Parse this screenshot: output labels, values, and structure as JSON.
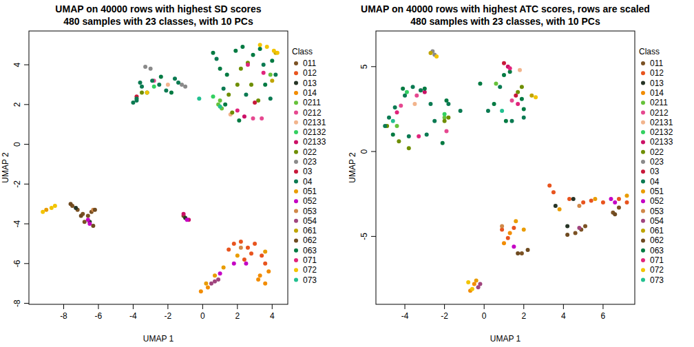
{
  "chart_data": [
    {
      "type": "scatter",
      "title": "UMAP on 40000 rows with highest SD scores",
      "subtitle": "480 samples with 23 classes, with 10 PCs",
      "x_label": "UMAP 1",
      "y_label": "UMAP 2",
      "legend_title": "Class",
      "xlim": [
        -10,
        4.9
      ],
      "ylim": [
        -8.05,
        5.7
      ],
      "xticks": [
        -8,
        -6,
        -4,
        -2,
        0,
        2,
        4
      ],
      "yticks": [
        -8,
        -6,
        -4,
        -2,
        0,
        2,
        4
      ],
      "marker": "circle",
      "series": [
        {
          "name": "011",
          "color": "#7B5224",
          "x": [
            -7.5,
            -7.2,
            -6.9,
            -6.6,
            -6.4,
            -6.8,
            -1.1
          ],
          "values": [
            -3.1,
            -3.3,
            -3.5,
            -3.6,
            -3.4,
            -3.9,
            -3.6
          ]
        },
        {
          "name": "012",
          "color": "#E8541E",
          "x": [
            1.8,
            2.2,
            2.6,
            3.0,
            3.4,
            2.8,
            3.6,
            2.4,
            1.5
          ],
          "values": [
            -5.0,
            -4.9,
            -5.2,
            -5.0,
            -5.6,
            -5.5,
            -6.0,
            -5.8,
            -5.3
          ]
        },
        {
          "name": "013",
          "color": "#263426",
          "x": [
            -7.3,
            -1.0,
            -6.5
          ],
          "values": [
            -3.2,
            -3.7,
            -3.9
          ]
        },
        {
          "name": "014",
          "color": "#F28C00",
          "x": [
            3.3,
            3.6,
            3.8,
            3.2,
            -0.1,
            0.3
          ],
          "values": [
            -6.6,
            -7.0,
            -6.4,
            -6.8,
            -7.4,
            -7.2
          ]
        },
        {
          "name": "0211",
          "color": "#66C23A",
          "x": [
            0.9,
            1.0,
            1.1,
            3.9
          ],
          "values": [
            2.0,
            2.2,
            1.8,
            3.5
          ]
        },
        {
          "name": "0212",
          "color": "#E64890",
          "x": [
            2.9,
            3.4,
            -2.8
          ],
          "values": [
            1.3,
            1.3,
            3.2
          ]
        },
        {
          "name": "02131",
          "color": "#F2B48C",
          "x": [
            1.6,
            -2.0
          ],
          "values": [
            1.5,
            3.0
          ]
        },
        {
          "name": "02132",
          "color": "#33D060",
          "x": [
            0.6,
            -2.8
          ],
          "values": [
            2.4,
            2.9
          ]
        },
        {
          "name": "02133",
          "color": "#CC1066",
          "x": [
            2.4,
            -1.1,
            -0.8
          ],
          "values": [
            1.4,
            -3.5,
            -3.8
          ]
        },
        {
          "name": "022",
          "color": "#6E8E00",
          "x": [
            1.5,
            2.0,
            2.2,
            2.8,
            1.7,
            2.6,
            3.2,
            -3.5
          ],
          "values": [
            2.5,
            3.0,
            3.8,
            3.0,
            1.6,
            4.1,
            2.2,
            2.6
          ]
        },
        {
          "name": "023",
          "color": "#8A8A8A",
          "x": [
            -3.3,
            -1.2,
            -1.0,
            -3.0
          ],
          "values": [
            3.9,
            3.0,
            2.9,
            3.8
          ]
        },
        {
          "name": "03",
          "color": "#C8183A",
          "x": [
            -3.8,
            3.0
          ],
          "values": [
            2.4,
            2.1
          ]
        },
        {
          "name": "04",
          "color": "#0B7A52",
          "x": [
            -4.0,
            -3.8,
            -3.5,
            -2.9,
            -2.5,
            -2.1,
            -1.6,
            -1.4,
            -3.8,
            -3.6,
            0.8,
            1.2,
            2.5,
            3.5,
            4.2,
            3.9
          ],
          "values": [
            2.1,
            2.3,
            2.9,
            3.2,
            3.0,
            2.7,
            3.3,
            3.1,
            2.2,
            3.1,
            4.3,
            2.8,
            2.5,
            4.0,
            3.5,
            2.3
          ]
        },
        {
          "name": "051",
          "color": "#E99C00",
          "x": [
            0.2,
            0.7,
            1.2,
            2.0,
            3.6,
            -9.0
          ],
          "values": [
            -7.0,
            -6.6,
            -6.2,
            -5.6,
            -5.4,
            -3.3
          ]
        },
        {
          "name": "052",
          "color": "#C400C4",
          "x": [
            -6.6,
            -6.5,
            1.0,
            1.8,
            2.5,
            -0.9
          ],
          "values": [
            -3.8,
            -4.0,
            -6.5,
            -6.0,
            -6.0,
            -3.8
          ]
        },
        {
          "name": "053",
          "color": "#D08848",
          "x": [
            -6.3,
            2.2
          ],
          "values": [
            -3.3,
            -5.2
          ]
        },
        {
          "name": "054",
          "color": "#A0447E",
          "x": [
            0.5,
            0.9,
            0.7
          ],
          "values": [
            -7.0,
            -6.8,
            -6.9
          ]
        },
        {
          "name": "061",
          "color": "#BFA400",
          "x": [
            4.2,
            4.0
          ],
          "values": [
            4.6,
            3.2
          ]
        },
        {
          "name": "062",
          "color": "#6E4A20",
          "x": [
            -7.6,
            -7.0,
            -6.2,
            -6.3
          ],
          "values": [
            -3.0,
            -3.6,
            -3.3,
            -4.1
          ]
        },
        {
          "name": "063",
          "color": "#007A42",
          "x": [
            -3.2,
            -2.4,
            -1.8,
            0.6,
            1.0,
            1.4,
            1.9,
            2.3,
            2.9,
            3.3,
            3.6,
            4.0,
            1.3,
            2.1
          ],
          "values": [
            2.6,
            3.4,
            2.6,
            4.6,
            3.8,
            3.5,
            4.7,
            4.9,
            4.5,
            4.8,
            3.0,
            4.2,
            2.0,
            1.2
          ]
        },
        {
          "name": "071",
          "color": "#E0247C",
          "x": [
            2.0,
            3.5,
            2.6
          ],
          "values": [
            1.7,
            3.6,
            4.0
          ]
        },
        {
          "name": "072",
          "color": "#F2C400",
          "x": [
            3.3,
            3.7,
            4.1,
            4.3,
            -3.2,
            -9.2,
            -8.7,
            -8.5
          ],
          "values": [
            5.0,
            4.9,
            4.7,
            4.6,
            2.6,
            -3.4,
            -3.2,
            -3.1
          ]
        },
        {
          "name": "073",
          "color": "#22C090",
          "x": [
            -0.2,
            1.0
          ],
          "values": [
            2.3,
            1.9
          ]
        }
      ]
    },
    {
      "type": "scatter",
      "title": "UMAP on 40000 rows with highest ATC scores, rows are scaled",
      "subtitle": "480 samples with 23 classes, with 10 PCs",
      "x_label": "UMAP 1",
      "y_label": "UMAP 2",
      "legend_title": "Class",
      "xlim": [
        -5.46,
        7.6
      ],
      "ylim": [
        -9.0,
        7.1
      ],
      "xticks": [
        -4,
        -2,
        0,
        2,
        4,
        6
      ],
      "yticks": [
        -5,
        0,
        5
      ],
      "marker": "circle",
      "series": [
        {
          "name": "011",
          "color": "#7B5224",
          "x": [
            4.6,
            4.9,
            5.1,
            6.5,
            6.8,
            1.9
          ],
          "values": [
            -4.8,
            -4.6,
            -4.4,
            -3.6,
            -3.3,
            -6.0
          ]
        },
        {
          "name": "012",
          "color": "#E8541E",
          "x": [
            3.3,
            3.5,
            4.3,
            5.0,
            5.4,
            6.0,
            6.8,
            7.2,
            0.9,
            1.2,
            1.5
          ],
          "values": [
            -2.0,
            -2.4,
            -2.8,
            -3.0,
            -2.9,
            -3.0,
            -2.8,
            -3.0,
            -4.6,
            -5.1,
            -4.5
          ]
        },
        {
          "name": "013",
          "color": "#263426",
          "x": [
            3.6,
            4.2,
            4.5
          ],
          "values": [
            -3.2,
            -4.4,
            -2.8
          ]
        },
        {
          "name": "014",
          "color": "#F28C00",
          "x": [
            1.0,
            1.3,
            -0.5,
            -0.7
          ],
          "values": [
            -5.4,
            -4.8,
            -7.8,
            -8.2
          ]
        },
        {
          "name": "0211",
          "color": "#66C23A",
          "x": [
            -2.0,
            -4.4,
            0.6
          ],
          "values": [
            2.0,
            1.5,
            4.0
          ]
        },
        {
          "name": "0212",
          "color": "#E64890",
          "x": [
            -4.2,
            -3.4,
            1.4,
            -1.9
          ],
          "values": [
            2.7,
            3.3,
            3.0,
            1.2
          ]
        },
        {
          "name": "02131",
          "color": "#F2B48C",
          "x": [
            -3.5,
            1.8
          ],
          "values": [
            2.8,
            4.8
          ]
        },
        {
          "name": "02132",
          "color": "#33D060",
          "x": [
            -3.9,
            -2.0
          ],
          "values": [
            3.5,
            2.2
          ]
        },
        {
          "name": "02133",
          "color": "#CC1066",
          "x": [
            1.2,
            -3.0
          ],
          "values": [
            5.0,
            3.5
          ]
        },
        {
          "name": "022",
          "color": "#6E8E00",
          "x": [
            -4.3,
            -3.8,
            -2.0,
            -1.8,
            1.7,
            1.9,
            -4.9
          ],
          "values": [
            0.6,
            0.2,
            1.8,
            2.0,
            3.5,
            3.8,
            1.5
          ]
        },
        {
          "name": "023",
          "color": "#8A8A8A",
          "x": [
            -2.6,
            -2.5,
            -3.2
          ],
          "values": [
            5.9,
            5.7,
            3.6
          ]
        },
        {
          "name": "03",
          "color": "#C8183A",
          "x": [
            1.0,
            1.6
          ],
          "values": [
            5.2,
            3.3
          ]
        },
        {
          "name": "04",
          "color": "#0B7A52",
          "x": [
            -5.0,
            -4.8,
            -4.5,
            -4.0,
            -3.6,
            -3.2,
            -2.7,
            -2.5,
            -1.8,
            -1.2,
            0.2,
            0.8,
            1.4,
            2.0,
            -3.8,
            -2.9
          ],
          "values": [
            1.5,
            2.0,
            2.6,
            3.3,
            3.8,
            3.6,
            2.8,
            1.8,
            2.8,
            2.4,
            2.4,
            3.8,
            1.8,
            2.0,
            0.9,
            1.0
          ]
        },
        {
          "name": "051",
          "color": "#E99C00",
          "x": [
            1.6,
            2.0,
            3.8,
            5.6,
            7.2,
            -0.4
          ],
          "values": [
            -4.1,
            -4.6,
            -3.4,
            -2.8,
            -2.6,
            -7.6
          ]
        },
        {
          "name": "052",
          "color": "#C400C4",
          "x": [
            1.5,
            6.4,
            6.6
          ],
          "values": [
            -5.6,
            -2.8,
            -3.0
          ]
        },
        {
          "name": "053",
          "color": "#D08848",
          "x": [
            0.9,
            4.8
          ],
          "values": [
            -4.4,
            -3.2
          ]
        },
        {
          "name": "054",
          "color": "#A0447E",
          "x": [
            4.8,
            -0.2,
            -0.3
          ],
          "values": [
            -4.5,
            -7.8,
            -8.0
          ]
        },
        {
          "name": "061",
          "color": "#BFA400",
          "x": [
            2.4,
            -2.7
          ],
          "values": [
            3.3,
            5.8
          ]
        },
        {
          "name": "062",
          "color": "#6E4A20",
          "x": [
            1.7,
            2.2,
            4.2,
            6.6
          ],
          "values": [
            -6.0,
            -5.8,
            -4.9,
            -3.7
          ]
        },
        {
          "name": "063",
          "color": "#007A42",
          "x": [
            -4.6,
            -4.1,
            -3.0,
            -2.1,
            -1.9,
            -0.2,
            0.5,
            1.0,
            1.3,
            1.9,
            2.0,
            1.1
          ],
          "values": [
            1.0,
            3.7,
            3.7,
            0.5,
            3.0,
            4.0,
            2.8,
            4.5,
            4.7,
            3.1,
            2.5,
            1.8
          ]
        },
        {
          "name": "071",
          "color": "#E0247C",
          "x": [
            -4.4,
            -3.3,
            1.3,
            1.7
          ],
          "values": [
            2.3,
            0.9,
            4.9,
            2.8
          ]
        },
        {
          "name": "072",
          "color": "#F2C400",
          "x": [
            2.6,
            -0.6,
            -0.8,
            -2.4
          ],
          "values": [
            3.2,
            -8.1,
            -7.7,
            5.6
          ]
        },
        {
          "name": "073",
          "color": "#22C090",
          "x": [
            -4.6,
            0.9
          ],
          "values": [
            1.8,
            2.4
          ]
        }
      ]
    }
  ]
}
